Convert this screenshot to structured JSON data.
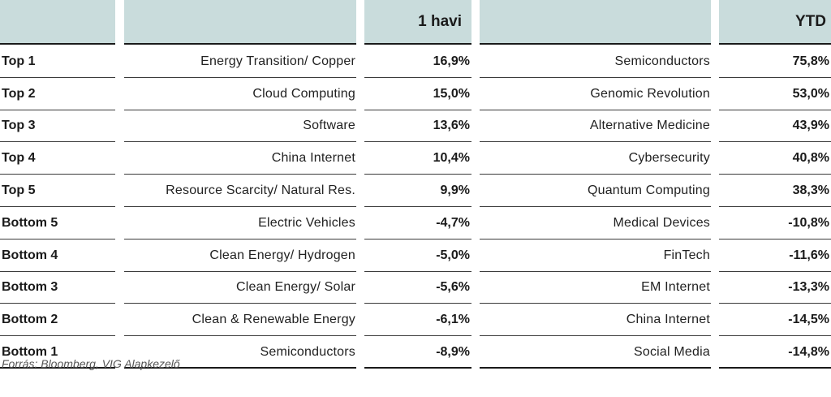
{
  "header": {
    "col_label": "",
    "col_name1": "",
    "col_value1": "1 havi",
    "col_name2": "",
    "col_value2": "YTD"
  },
  "rows": [
    {
      "rank": "Top 1",
      "name_1m": "Energy Transition/ Copper",
      "value_1m": "16,9%",
      "name_ytd": "Semiconductors",
      "value_ytd": "75,8%"
    },
    {
      "rank": "Top 2",
      "name_1m": "Cloud Computing",
      "value_1m": "15,0%",
      "name_ytd": "Genomic Revolution",
      "value_ytd": "53,0%"
    },
    {
      "rank": "Top 3",
      "name_1m": "Software",
      "value_1m": "13,6%",
      "name_ytd": "Alternative Medicine",
      "value_ytd": "43,9%"
    },
    {
      "rank": "Top 4",
      "name_1m": "China Internet",
      "value_1m": "10,4%",
      "name_ytd": "Cybersecurity",
      "value_ytd": "40,8%"
    },
    {
      "rank": "Top 5",
      "name_1m": "Resource Scarcity/ Natural Res.",
      "value_1m": "9,9%",
      "name_ytd": "Quantum Computing",
      "value_ytd": "38,3%"
    },
    {
      "rank": "Bottom 5",
      "name_1m": "Electric Vehicles",
      "value_1m": "-4,7%",
      "name_ytd": "Medical Devices",
      "value_ytd": "-10,8%"
    },
    {
      "rank": "Bottom 4",
      "name_1m": "Clean Energy/ Hydrogen",
      "value_1m": "-5,0%",
      "name_ytd": "FinTech",
      "value_ytd": "-11,6%"
    },
    {
      "rank": "Bottom 3",
      "name_1m": "Clean Energy/ Solar",
      "value_1m": "-5,6%",
      "name_ytd": "EM Internet",
      "value_ytd": "-13,3%"
    },
    {
      "rank": "Bottom 2",
      "name_1m": "Clean & Renewable Energy",
      "value_1m": "-6,1%",
      "name_ytd": "China Internet",
      "value_ytd": "-14,5%"
    },
    {
      "rank": "Bottom 1",
      "name_1m": "Semiconductors",
      "value_1m": "-8,9%",
      "name_ytd": "Social Media",
      "value_ytd": "-14,8%"
    }
  ],
  "source": "Forrás: Bloomberg, VIG Alapkezelő",
  "colors": {
    "header_bg": "#c9dcdc",
    "rule": "#1a1a1a"
  }
}
